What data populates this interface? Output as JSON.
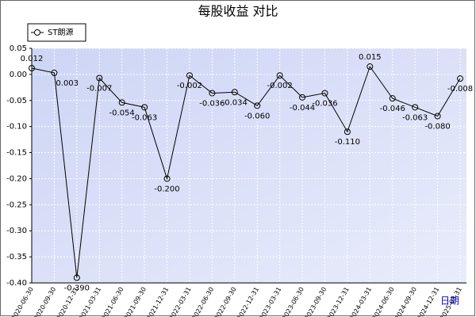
{
  "chart_data": {
    "type": "line",
    "title": "每股收益 对比",
    "x_label": "日期",
    "categories": [
      "2020-06-30",
      "2020-09-30",
      "2020-12-31",
      "2021-03-31",
      "2021-06-30",
      "2021-09-30",
      "2021-12-31",
      "2022-03-31",
      "2022-06-30",
      "2022-09-30",
      "2022-12-31",
      "2023-03-31",
      "2023-06-30",
      "2023-09-30",
      "2023-12-31",
      "2024-03-31",
      "2024-06-30",
      "2024-09-30",
      "2024-12-31",
      "2025-03-31"
    ],
    "series": [
      {
        "name": "ST朗源",
        "color": "#000000",
        "values": [
          0.012,
          0.003,
          -0.39,
          -0.007,
          -0.054,
          -0.063,
          -0.2,
          -0.002,
          -0.036,
          -0.034,
          -0.06,
          -0.002,
          -0.044,
          -0.036,
          -0.11,
          0.015,
          -0.046,
          -0.063,
          -0.08,
          -0.008
        ],
        "value_labels": [
          "0.012",
          "0.003",
          "-0.390",
          "-0.007",
          "-0.054",
          "-0.063",
          "-0.200",
          "-0.002",
          "-0.036",
          "-0.034",
          "-0.060",
          "-0.002",
          "-0.044",
          "-0.036",
          "-0.110",
          "0.015",
          "-0.046",
          "-0.063",
          "-0.080",
          "-0.008"
        ]
      }
    ],
    "ylim": [
      -0.4,
      0.05
    ],
    "yticks": [
      0.05,
      {
        "value": 0,
        "label": "0.00"
      },
      {
        "value": -0.05,
        "label": "-0.05"
      },
      {
        "value": -0.1,
        "label": "-0.10"
      },
      {
        "value": -0.15,
        "label": "-0.15"
      },
      {
        "value": -0.2,
        "label": "-0.20"
      },
      {
        "value": -0.25,
        "label": "-0.25"
      },
      {
        "value": -0.3,
        "label": "-0.30"
      },
      {
        "value": -0.35,
        "label": "-0.35"
      },
      {
        "value": -0.4,
        "label": "-0.40"
      }
    ],
    "grid": true,
    "legend": "top-left"
  }
}
